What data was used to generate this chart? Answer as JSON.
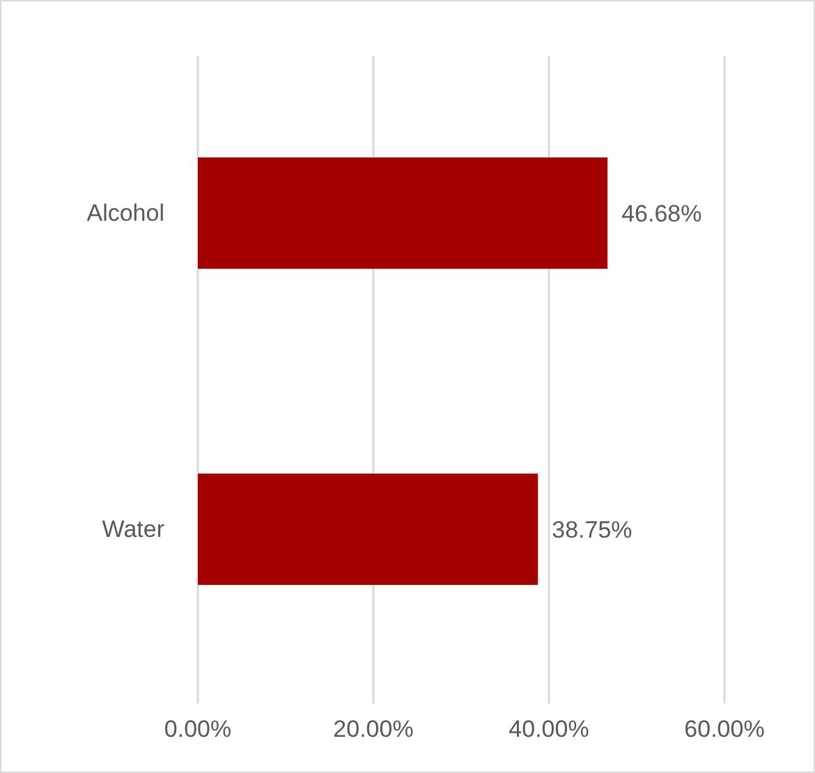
{
  "chart_data": {
    "type": "bar",
    "orientation": "horizontal",
    "categories": [
      "Alcohol",
      "Water"
    ],
    "series": [
      {
        "color": "#a50000",
        "values": [
          46.68,
          38.75
        ]
      }
    ],
    "value_labels": [
      "46.68%",
      "38.75%"
    ],
    "xlim": [
      0,
      60
    ],
    "xticks": [
      {
        "value": 0,
        "label": "0.00%"
      },
      {
        "value": 20,
        "label": "20.00%"
      },
      {
        "value": 40,
        "label": "40.00%"
      },
      {
        "value": 60,
        "label": "60.00%"
      }
    ],
    "grid": "x"
  }
}
